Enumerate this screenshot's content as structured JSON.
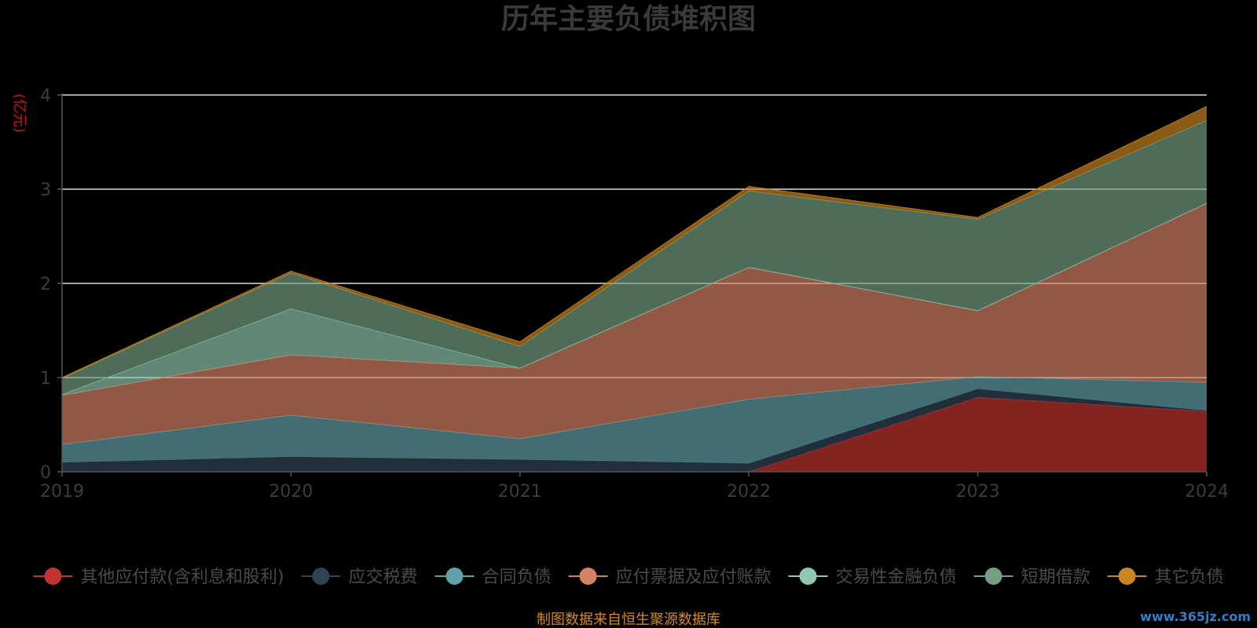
{
  "chart_data": {
    "type": "area",
    "stacked": true,
    "title": "历年主要负债堆积图",
    "ylabel": "(亿元)",
    "xlabel": "",
    "x": [
      "2019",
      "2020",
      "2021",
      "2022",
      "2023",
      "2024"
    ],
    "ylim": [
      0,
      4
    ],
    "yticks": [
      "0",
      "1",
      "2",
      "3",
      "4"
    ],
    "grid": true,
    "legend_position": "bottom",
    "series": [
      {
        "name": "其他应付款(含利息和股利)",
        "color": "#c23531",
        "values": [
          0,
          0,
          0,
          0,
          0.79,
          0.64
        ]
      },
      {
        "name": "应交税费",
        "color": "#2f4554",
        "values": [
          0.1,
          0.16,
          0.13,
          0.09,
          0.09,
          0.01
        ]
      },
      {
        "name": "合同负债",
        "color": "#61a0a8",
        "values": [
          0.19,
          0.44,
          0.22,
          0.68,
          0.13,
          0.3
        ]
      },
      {
        "name": "应付票据及应付账款",
        "color": "#d48265",
        "values": [
          0.52,
          0.64,
          0.75,
          1.4,
          0.7,
          1.9
        ]
      },
      {
        "name": "交易性金融负债",
        "color": "#91c7ae",
        "values": [
          0.01,
          0.49,
          0.0,
          0.0,
          0.0,
          0.0
        ]
      },
      {
        "name": "短期借款",
        "color": "#749f83",
        "values": [
          0.17,
          0.38,
          0.23,
          0.81,
          0.97,
          0.88
        ]
      },
      {
        "name": "其它负债",
        "color": "#ca8622",
        "values": [
          0.01,
          0.02,
          0.05,
          0.05,
          0.02,
          0.15
        ]
      }
    ],
    "source": "制图数据来自恒生聚源数据库",
    "watermark": "www.365jz.com"
  }
}
